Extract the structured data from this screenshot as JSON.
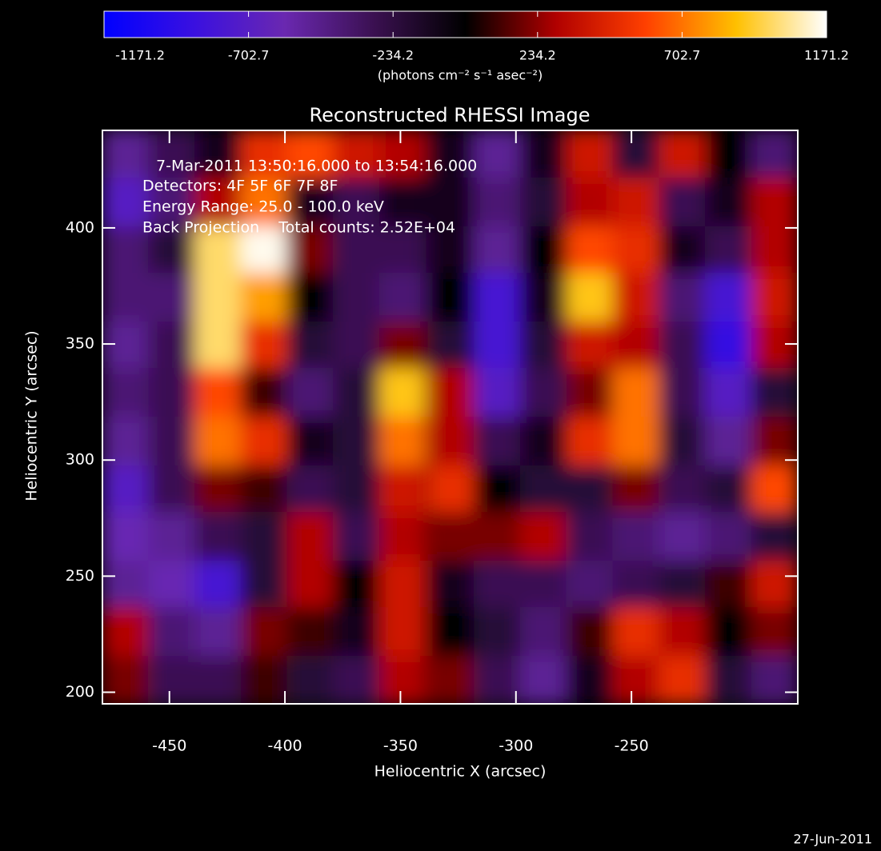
{
  "chart_data": {
    "type": "heatmap",
    "title": "Reconstructed RHESSI Image",
    "annotations": [
      "7-Mar-2011 13:50:16.000 to 13:54:16.000",
      "Detectors: 4F 5F 6F 7F 8F",
      "Energy Range: 25.0 - 100.0 keV",
      "Back Projection    Total counts: 2.52E+04"
    ],
    "x_label": "Heliocentric X (arcsec)",
    "y_label": "Heliocentric Y (arcsec)",
    "colorbar_label": "(photons cm⁻² s⁻¹ asec⁻²)",
    "date": "27-Jun-2011",
    "xlim": [
      -479,
      -178
    ],
    "ylim": [
      195,
      442
    ],
    "xticks": [
      -450,
      -400,
      -350,
      -300,
      -250
    ],
    "yticks": [
      200,
      250,
      300,
      350,
      400
    ],
    "zlim": [
      -1171.2,
      1171.2
    ],
    "zticks": [
      -1171.2,
      -702.7,
      -234.2,
      234.2,
      702.7,
      1171.2
    ],
    "colormap": [
      "#0000ff",
      "#3a10e0",
      "#6a28b0",
      "#3a1050",
      "#000000",
      "#b00000",
      "#ff4000",
      "#ffc000",
      "#ffffff"
    ],
    "x": [
      -469,
      -449,
      -429,
      -409,
      -389,
      -369,
      -349,
      -328,
      -308,
      -288,
      -268,
      -248,
      -228,
      -208,
      -188
    ],
    "y": [
      432,
      411,
      390,
      370,
      349,
      329,
      308,
      287,
      267,
      246,
      226,
      205
    ],
    "z": [
      [
        -500,
        -300,
        -100,
        500,
        600,
        400,
        300,
        -100,
        -500,
        -100,
        400,
        -200,
        400,
        0,
        -400
      ],
      [
        -700,
        -400,
        300,
        700,
        -100,
        -300,
        -100,
        -100,
        -400,
        -200,
        300,
        400,
        -300,
        -100,
        300
      ],
      [
        -400,
        -200,
        1000,
        1150,
        200,
        -300,
        -300,
        -100,
        -500,
        0,
        600,
        500,
        -100,
        -300,
        300
      ],
      [
        -400,
        -400,
        1000,
        800,
        0,
        -300,
        -400,
        0,
        -800,
        -100,
        900,
        400,
        -400,
        -800,
        400
      ],
      [
        -500,
        -300,
        1000,
        500,
        -200,
        -300,
        200,
        -200,
        -800,
        -200,
        400,
        300,
        -300,
        -900,
        300
      ],
      [
        -400,
        -300,
        600,
        100,
        -400,
        -200,
        900,
        300,
        -700,
        -300,
        200,
        700,
        -300,
        -700,
        -200
      ],
      [
        -500,
        -300,
        700,
        500,
        -100,
        -200,
        700,
        300,
        -300,
        -100,
        500,
        700,
        -200,
        -500,
        200
      ],
      [
        -700,
        -300,
        200,
        100,
        -300,
        -200,
        400,
        500,
        0,
        -200,
        -200,
        200,
        -300,
        -200,
        600
      ],
      [
        -600,
        -500,
        -300,
        -200,
        300,
        -300,
        300,
        200,
        200,
        300,
        -300,
        -400,
        -500,
        -400,
        -200
      ],
      [
        -500,
        -600,
        -800,
        -200,
        300,
        0,
        400,
        -100,
        -300,
        -300,
        -400,
        -300,
        -200,
        100,
        400
      ],
      [
        300,
        -400,
        -500,
        200,
        100,
        -100,
        400,
        0,
        -200,
        -400,
        100,
        500,
        300,
        0,
        200
      ],
      [
        200,
        -300,
        -300,
        100,
        -200,
        -300,
        300,
        200,
        -300,
        -500,
        -100,
        300,
        500,
        -200,
        -400
      ]
    ]
  }
}
